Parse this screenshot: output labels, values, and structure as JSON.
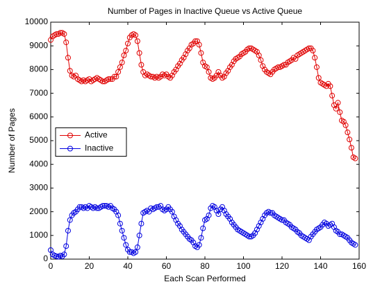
{
  "chart_data": {
    "type": "line",
    "title": "Number of Pages in Inactive Queue vs Active Queue",
    "xlabel": "Each Scan Performed",
    "ylabel": "Number of Pages",
    "x": [
      0,
      1,
      2,
      3,
      4,
      5,
      6,
      7,
      8,
      9,
      10,
      11,
      12,
      13,
      14,
      15,
      16,
      17,
      18,
      19,
      20,
      21,
      22,
      23,
      24,
      25,
      26,
      27,
      28,
      29,
      30,
      31,
      32,
      33,
      34,
      35,
      36,
      37,
      38,
      39,
      40,
      41,
      42,
      43,
      44,
      45,
      46,
      47,
      48,
      49,
      50,
      51,
      52,
      53,
      54,
      55,
      56,
      57,
      58,
      59,
      60,
      61,
      62,
      63,
      64,
      65,
      66,
      67,
      68,
      69,
      70,
      71,
      72,
      73,
      74,
      75,
      76,
      77,
      78,
      79,
      80,
      81,
      82,
      83,
      84,
      85,
      86,
      87,
      88,
      89,
      90,
      91,
      92,
      93,
      94,
      95,
      96,
      97,
      98,
      99,
      100,
      101,
      102,
      103,
      104,
      105,
      106,
      107,
      108,
      109,
      110,
      111,
      112,
      113,
      114,
      115,
      116,
      117,
      118,
      119,
      120,
      121,
      122,
      123,
      124,
      125,
      126,
      127,
      128,
      129,
      130,
      131,
      132,
      133,
      134,
      135,
      136,
      137,
      138,
      139,
      140,
      141,
      142,
      143,
      144,
      145,
      146,
      147,
      148,
      149,
      150,
      151,
      152,
      153,
      154,
      155,
      156,
      157,
      158
    ],
    "series": [
      {
        "name": "Active",
        "color": "#e00000",
        "values": [
          9250,
          9400,
          9450,
          9500,
          9500,
          9550,
          9550,
          9500,
          9150,
          8500,
          7950,
          7750,
          7700,
          7750,
          7600,
          7550,
          7500,
          7550,
          7500,
          7550,
          7600,
          7500,
          7550,
          7600,
          7650,
          7600,
          7550,
          7500,
          7500,
          7550,
          7600,
          7600,
          7600,
          7700,
          7700,
          7900,
          8100,
          8300,
          8600,
          8800,
          9100,
          9350,
          9450,
          9500,
          9450,
          9200,
          8700,
          8200,
          7900,
          7750,
          7800,
          7750,
          7700,
          7700,
          7650,
          7700,
          7650,
          7700,
          7800,
          7750,
          7800,
          7700,
          7650,
          7750,
          7900,
          8000,
          8150,
          8250,
          8400,
          8500,
          8650,
          8800,
          8900,
          9050,
          9100,
          9200,
          9200,
          9050,
          8700,
          8300,
          8150,
          8100,
          7900,
          7650,
          7600,
          7650,
          7750,
          7900,
          7750,
          7650,
          7700,
          7850,
          7950,
          8100,
          8200,
          8350,
          8450,
          8500,
          8550,
          8650,
          8700,
          8750,
          8850,
          8900,
          8900,
          8850,
          8800,
          8750,
          8600,
          8400,
          8150,
          8000,
          7900,
          7850,
          7800,
          7900,
          8000,
          8050,
          8100,
          8100,
          8150,
          8200,
          8200,
          8300,
          8350,
          8400,
          8500,
          8450,
          8600,
          8650,
          8700,
          8750,
          8800,
          8850,
          8900,
          8900,
          8800,
          8500,
          8100,
          7650,
          7450,
          7400,
          7350,
          7300,
          7400,
          7300,
          6900,
          6500,
          6350,
          6600,
          6200,
          5850,
          5800,
          5650,
          5350,
          5050,
          4700,
          4300,
          4250
        ]
      },
      {
        "name": "Inactive",
        "color": "#0000e0",
        "values": [
          380,
          200,
          150,
          120,
          100,
          150,
          120,
          200,
          550,
          1200,
          1650,
          1850,
          1950,
          2000,
          2100,
          2200,
          2200,
          2150,
          2200,
          2150,
          2250,
          2200,
          2150,
          2200,
          2150,
          2150,
          2200,
          2250,
          2250,
          2250,
          2200,
          2250,
          2150,
          2100,
          2000,
          1850,
          1500,
          1200,
          900,
          600,
          400,
          300,
          300,
          250,
          300,
          500,
          1000,
          1500,
          1950,
          2000,
          2050,
          2000,
          2150,
          2100,
          2150,
          2200,
          2200,
          2250,
          2100,
          2050,
          2100,
          2200,
          2100,
          2000,
          1800,
          1650,
          1500,
          1400,
          1250,
          1150,
          1050,
          950,
          850,
          800,
          700,
          550,
          500,
          600,
          900,
          1300,
          1650,
          1700,
          1850,
          2150,
          2250,
          2200,
          2050,
          1900,
          2100,
          2200,
          2050,
          1900,
          1800,
          1700,
          1550,
          1450,
          1350,
          1250,
          1200,
          1150,
          1100,
          1050,
          1000,
          950,
          950,
          1000,
          1100,
          1250,
          1400,
          1550,
          1700,
          1850,
          1950,
          2000,
          1950,
          1950,
          1850,
          1800,
          1750,
          1700,
          1650,
          1650,
          1550,
          1500,
          1450,
          1350,
          1300,
          1250,
          1150,
          1100,
          1000,
          950,
          900,
          850,
          800,
          950,
          1050,
          1150,
          1250,
          1300,
          1350,
          1450,
          1550,
          1500,
          1400,
          1450,
          1500,
          1350,
          1200,
          1150,
          1050,
          1050,
          1000,
          950,
          900,
          800,
          700,
          650,
          600
        ]
      }
    ],
    "xlim": [
      0,
      160
    ],
    "xticks": [
      0,
      20,
      40,
      60,
      80,
      100,
      120,
      140,
      160
    ],
    "ylim": [
      0,
      10000
    ],
    "yticks": [
      0,
      1000,
      2000,
      3000,
      4000,
      5000,
      6000,
      7000,
      8000,
      9000,
      10000
    ],
    "grid": false,
    "legend": "west",
    "marker": "circle"
  }
}
